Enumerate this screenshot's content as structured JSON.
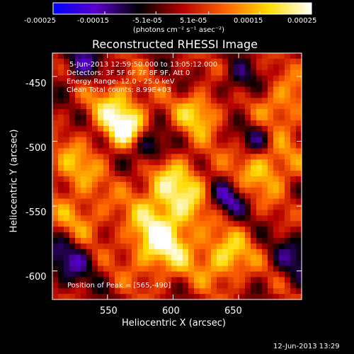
{
  "colorbar": {
    "ticks": [
      "-0.00025",
      "-0.00015",
      "-5.1e-05",
      "5.1e-05",
      "0.00015",
      "0.00025"
    ],
    "units_label": "(photons cm⁻² s⁻¹ asec⁻²)",
    "range": [
      -0.00025,
      0.00025
    ],
    "colormap": [
      "#0000ff",
      "#5a00c8",
      "#000000",
      "#b40000",
      "#ff6400",
      "#ffdc00",
      "#ffffff"
    ]
  },
  "chart_data": {
    "type": "heatmap",
    "title": "Reconstructed RHESSI Image",
    "xlabel": "Heliocentric X (arcsec)",
    "ylabel": "Heliocentric Y (arcsec)",
    "xlim": [
      508,
      698
    ],
    "ylim": [
      -622,
      -432
    ],
    "xticks": [
      550,
      600,
      650
    ],
    "yticks": [
      -450,
      -500,
      -550,
      -600
    ],
    "annotations": [
      "5-Jun-2013 12:59:50.000 to 13:05:12.000",
      "Detectors: 3F 5F 6F 7F 8F 9F, Att 0",
      "Energy Range: 12.0 - 25.0 keV",
      "Clean     Total counts: 8.99E+03"
    ],
    "peak_label": "Position of Peak = [565,-490]",
    "peak": [
      565,
      -490
    ],
    "blobs": [
      {
        "x": 565,
        "y": -490,
        "amp": 1.0,
        "s": 12
      },
      {
        "x": 555,
        "y": -470,
        "amp": 0.6,
        "s": 14
      },
      {
        "x": 620,
        "y": -478,
        "amp": 0.75,
        "s": 12
      },
      {
        "x": 600,
        "y": -540,
        "amp": 0.85,
        "s": 20
      },
      {
        "x": 590,
        "y": -580,
        "amp": 0.9,
        "s": 18
      },
      {
        "x": 640,
        "y": -590,
        "amp": 0.8,
        "s": 14
      },
      {
        "x": 672,
        "y": -520,
        "amp": 0.7,
        "s": 16
      },
      {
        "x": 685,
        "y": -470,
        "amp": 0.6,
        "s": 14
      },
      {
        "x": 530,
        "y": -560,
        "amp": 0.5,
        "s": 16
      },
      {
        "x": 525,
        "y": -520,
        "amp": 0.55,
        "s": 14
      },
      {
        "x": 580,
        "y": -505,
        "amp": -0.9,
        "s": 10
      },
      {
        "x": 520,
        "y": -590,
        "amp": -0.6,
        "s": 14
      },
      {
        "x": 640,
        "y": -545,
        "amp": -0.7,
        "s": 10
      },
      {
        "x": 665,
        "y": -498,
        "amp": -0.6,
        "s": 9
      },
      {
        "x": 650,
        "y": -455,
        "amp": -0.45,
        "s": 10
      },
      {
        "x": 530,
        "y": -440,
        "amp": -0.5,
        "s": 12
      },
      {
        "x": 695,
        "y": -590,
        "amp": -0.5,
        "s": 12
      }
    ]
  },
  "footer": {
    "timestamp": "12-Jun-2013 13:29"
  }
}
